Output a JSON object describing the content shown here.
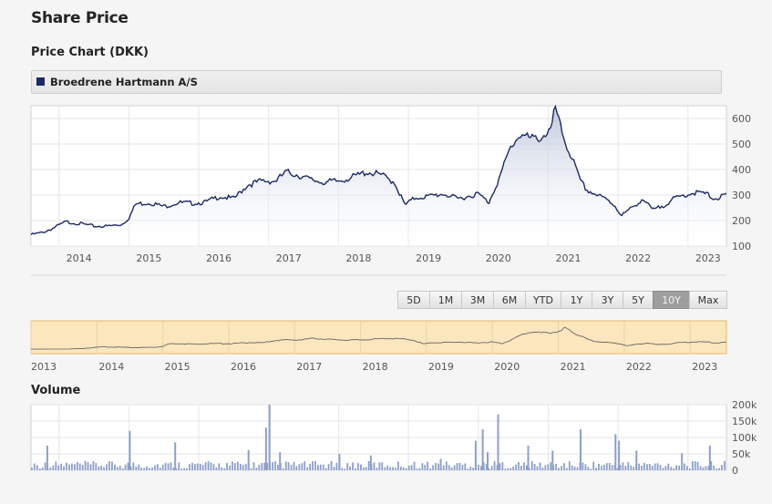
{
  "page": {
    "title": "Share Price"
  },
  "price_section": {
    "title": "Price Chart (DKK)"
  },
  "legend": {
    "label": "Broedrene Hartmann A/S",
    "color": "#1c2a63"
  },
  "range_selector": {
    "buttons": [
      "5D",
      "1M",
      "3M",
      "6M",
      "YTD",
      "1Y",
      "3Y",
      "5Y",
      "10Y",
      "Max"
    ],
    "active": "10Y"
  },
  "volume_section": {
    "title": "Volume"
  },
  "colors": {
    "line": "#1c2a63",
    "area_top": "#b9c4d9",
    "navigator_fill": "#fbe6bd",
    "navigator_border": "#e6b96a",
    "volume_bar": "#8ca0c8"
  },
  "chart_data": [
    {
      "type": "area",
      "title": "",
      "series": [
        {
          "name": "Broedrene Hartmann A/S",
          "x": [
            2013.6,
            2013.75,
            2013.9,
            2014.1,
            2014.3,
            2014.5,
            2014.7,
            2014.9,
            2015.0,
            2015.1,
            2015.3,
            2015.5,
            2015.7,
            2015.9,
            2016.1,
            2016.3,
            2016.5,
            2016.7,
            2016.9,
            2017.1,
            2017.25,
            2017.4,
            2017.6,
            2017.8,
            2018.0,
            2018.2,
            2018.4,
            2018.6,
            2018.8,
            2018.95,
            2019.1,
            2019.3,
            2019.5,
            2019.7,
            2019.85,
            2020.0,
            2020.15,
            2020.2,
            2020.3,
            2020.45,
            2020.6,
            2020.75,
            2020.9,
            2021.05,
            2021.1,
            2021.15,
            2021.25,
            2021.35,
            2021.45,
            2021.55,
            2021.7,
            2021.85,
            2021.95,
            2022.05,
            2022.2,
            2022.35,
            2022.5,
            2022.65,
            2022.8,
            2022.95,
            2023.1,
            2023.25,
            2023.4,
            2023.55
          ],
          "y": [
            145,
            152,
            168,
            195,
            188,
            178,
            178,
            185,
            210,
            265,
            270,
            255,
            270,
            268,
            272,
            295,
            285,
            340,
            355,
            355,
            390,
            380,
            360,
            350,
            355,
            370,
            390,
            380,
            350,
            260,
            290,
            295,
            305,
            285,
            295,
            305,
            270,
            305,
            365,
            480,
            540,
            520,
            525,
            560,
            650,
            590,
            500,
            440,
            360,
            320,
            300,
            280,
            260,
            220,
            250,
            285,
            240,
            260,
            285,
            300,
            310,
            305,
            285,
            300
          ]
        }
      ],
      "x_ticks": [
        "2014",
        "2015",
        "2016",
        "2017",
        "2018",
        "2019",
        "2020",
        "2021",
        "2022",
        "2023"
      ],
      "y_ticks": [
        "600",
        "500",
        "400",
        "300",
        "200",
        "100"
      ],
      "ylim": [
        100,
        650
      ],
      "xlim": [
        2013.6,
        2023.55
      ],
      "grid": true
    },
    {
      "type": "line",
      "title": "",
      "role": "navigator",
      "x_ticks": [
        "2013",
        "2014",
        "2015",
        "2016",
        "2017",
        "2018",
        "2019",
        "2020",
        "2021",
        "2022",
        "2023"
      ],
      "xlim": [
        2013.0,
        2023.55
      ]
    },
    {
      "type": "bar",
      "title": "",
      "y_ticks": [
        "200k",
        "150k",
        "100k",
        "50k",
        "0"
      ],
      "ylim": [
        0,
        200000
      ],
      "xlim": [
        2013.6,
        2023.55
      ],
      "grid": true,
      "spikes": [
        {
          "x": 2013.82,
          "value": 75000
        },
        {
          "x": 2015.0,
          "value": 120000
        },
        {
          "x": 2015.65,
          "value": 85000
        },
        {
          "x": 2016.7,
          "value": 62000
        },
        {
          "x": 2017.0,
          "value": 200000
        },
        {
          "x": 2016.95,
          "value": 130000
        },
        {
          "x": 2017.15,
          "value": 55000
        },
        {
          "x": 2018.0,
          "value": 50000
        },
        {
          "x": 2018.45,
          "value": 45000
        },
        {
          "x": 2019.45,
          "value": 35000
        },
        {
          "x": 2019.95,
          "value": 90000
        },
        {
          "x": 2020.05,
          "value": 125000
        },
        {
          "x": 2020.12,
          "value": 55000
        },
        {
          "x": 2020.27,
          "value": 170000
        },
        {
          "x": 2020.7,
          "value": 75000
        },
        {
          "x": 2021.05,
          "value": 60000
        },
        {
          "x": 2021.45,
          "value": 125000
        },
        {
          "x": 2021.95,
          "value": 110000
        },
        {
          "x": 2022.0,
          "value": 90000
        },
        {
          "x": 2022.25,
          "value": 60000
        },
        {
          "x": 2022.9,
          "value": 52000
        },
        {
          "x": 2023.3,
          "value": 75000
        }
      ],
      "baseline_level": 15000
    }
  ]
}
